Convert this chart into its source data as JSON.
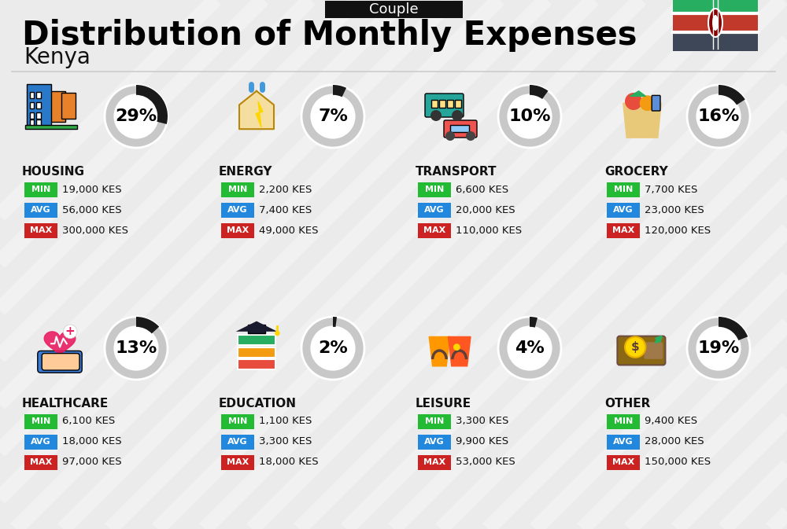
{
  "title": "Distribution of Monthly Expenses",
  "subtitle": "Kenya",
  "header_label": "Couple",
  "bg_color": "#ebebeb",
  "categories": [
    {
      "name": "HOUSING",
      "pct": 29,
      "min_val": "19,000 KES",
      "avg_val": "56,000 KES",
      "max_val": "300,000 KES",
      "icon": "housing",
      "row": 0,
      "col": 0
    },
    {
      "name": "ENERGY",
      "pct": 7,
      "min_val": "2,200 KES",
      "avg_val": "7,400 KES",
      "max_val": "49,000 KES",
      "icon": "energy",
      "row": 0,
      "col": 1
    },
    {
      "name": "TRANSPORT",
      "pct": 10,
      "min_val": "6,600 KES",
      "avg_val": "20,000 KES",
      "max_val": "110,000 KES",
      "icon": "transport",
      "row": 0,
      "col": 2
    },
    {
      "name": "GROCERY",
      "pct": 16,
      "min_val": "7,700 KES",
      "avg_val": "23,000 KES",
      "max_val": "120,000 KES",
      "icon": "grocery",
      "row": 0,
      "col": 3
    },
    {
      "name": "HEALTHCARE",
      "pct": 13,
      "min_val": "6,100 KES",
      "avg_val": "18,000 KES",
      "max_val": "97,000 KES",
      "icon": "healthcare",
      "row": 1,
      "col": 0
    },
    {
      "name": "EDUCATION",
      "pct": 2,
      "min_val": "1,100 KES",
      "avg_val": "3,300 KES",
      "max_val": "18,000 KES",
      "icon": "education",
      "row": 1,
      "col": 1
    },
    {
      "name": "LEISURE",
      "pct": 4,
      "min_val": "3,300 KES",
      "avg_val": "9,900 KES",
      "max_val": "53,000 KES",
      "icon": "leisure",
      "row": 1,
      "col": 2
    },
    {
      "name": "OTHER",
      "pct": 19,
      "min_val": "9,400 KES",
      "avg_val": "28,000 KES",
      "max_val": "150,000 KES",
      "icon": "other",
      "row": 1,
      "col": 3
    }
  ],
  "color_min": "#22bb33",
  "color_avg": "#2288dd",
  "color_max": "#cc2222",
  "flag_colors": [
    "#3d4757",
    "#c0392b",
    "#27ae60"
  ],
  "title_fontsize": 30,
  "subtitle_fontsize": 20,
  "header_fontsize": 13
}
